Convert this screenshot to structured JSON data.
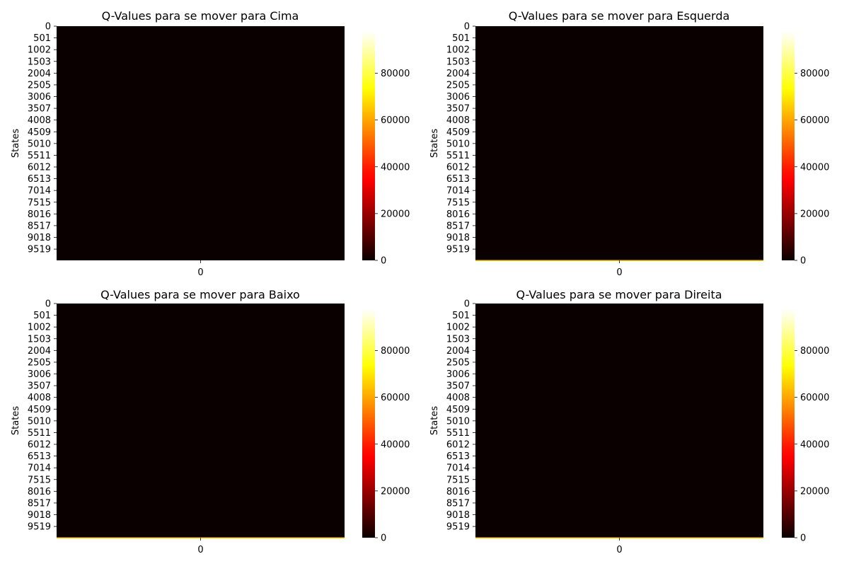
{
  "figure": {
    "background": "#ffffff"
  },
  "chart_data": [
    {
      "type": "heatmap",
      "title": "Q-Values para se mover para Cima",
      "xlabel": "",
      "ylabel": "States",
      "x_ticks": [
        "0"
      ],
      "y_ticks": [
        "0",
        "501",
        "1002",
        "1503",
        "2004",
        "2505",
        "3006",
        "3507",
        "4008",
        "4509",
        "5010",
        "5511",
        "6012",
        "6513",
        "7014",
        "7515",
        "8016",
        "8517",
        "9018",
        "9519"
      ],
      "n_states": 10000,
      "n_columns": 1,
      "base_value": 0,
      "highlights": [],
      "colormap": "hot",
      "colorbar": {
        "min": 0,
        "max": 98000,
        "ticks": [
          0,
          20000,
          40000,
          60000,
          80000
        ],
        "tick_labels": [
          "0",
          "20000",
          "40000",
          "60000",
          "80000"
        ]
      }
    },
    {
      "type": "heatmap",
      "title": "Q-Values para se mover para Esquerda",
      "xlabel": "",
      "ylabel": "States",
      "x_ticks": [
        "0"
      ],
      "y_ticks": [
        "0",
        "501",
        "1002",
        "1503",
        "2004",
        "2505",
        "3006",
        "3507",
        "4008",
        "4509",
        "5010",
        "5511",
        "6012",
        "6513",
        "7014",
        "7515",
        "8016",
        "8517",
        "9018",
        "9519"
      ],
      "n_states": 10000,
      "n_columns": 1,
      "base_value": 0,
      "highlights": [
        {
          "state_from": 9985,
          "state_to": 9999,
          "value": 65000
        }
      ],
      "colormap": "hot",
      "colorbar": {
        "min": 0,
        "max": 98000,
        "ticks": [
          0,
          20000,
          40000,
          60000,
          80000
        ],
        "tick_labels": [
          "0",
          "20000",
          "40000",
          "60000",
          "80000"
        ]
      }
    },
    {
      "type": "heatmap",
      "title": "Q-Values para se mover para Baixo",
      "xlabel": "",
      "ylabel": "States",
      "x_ticks": [
        "0"
      ],
      "y_ticks": [
        "0",
        "501",
        "1002",
        "1503",
        "2004",
        "2505",
        "3006",
        "3507",
        "4008",
        "4509",
        "5010",
        "5511",
        "6012",
        "6513",
        "7014",
        "7515",
        "8016",
        "8517",
        "9018",
        "9519"
      ],
      "n_states": 10000,
      "n_columns": 1,
      "base_value": 0,
      "highlights": [
        {
          "state_from": 9985,
          "state_to": 9999,
          "value": 65000
        }
      ],
      "colormap": "hot",
      "colorbar": {
        "min": 0,
        "max": 98000,
        "ticks": [
          0,
          20000,
          40000,
          60000,
          80000
        ],
        "tick_labels": [
          "0",
          "20000",
          "40000",
          "60000",
          "80000"
        ]
      }
    },
    {
      "type": "heatmap",
      "title": "Q-Values para se mover para Direita",
      "xlabel": "",
      "ylabel": "States",
      "x_ticks": [
        "0"
      ],
      "y_ticks": [
        "0",
        "501",
        "1002",
        "1503",
        "2004",
        "2505",
        "3006",
        "3507",
        "4008",
        "4509",
        "5010",
        "5511",
        "6012",
        "6513",
        "7014",
        "7515",
        "8016",
        "8517",
        "9018",
        "9519"
      ],
      "n_states": 10000,
      "n_columns": 1,
      "base_value": 0,
      "highlights": [
        {
          "state_from": 9985,
          "state_to": 9999,
          "value": 65000
        }
      ],
      "colormap": "hot",
      "colorbar": {
        "min": 0,
        "max": 98000,
        "ticks": [
          0,
          20000,
          40000,
          60000,
          80000
        ],
        "tick_labels": [
          "0",
          "20000",
          "40000",
          "60000",
          "80000"
        ]
      }
    }
  ]
}
